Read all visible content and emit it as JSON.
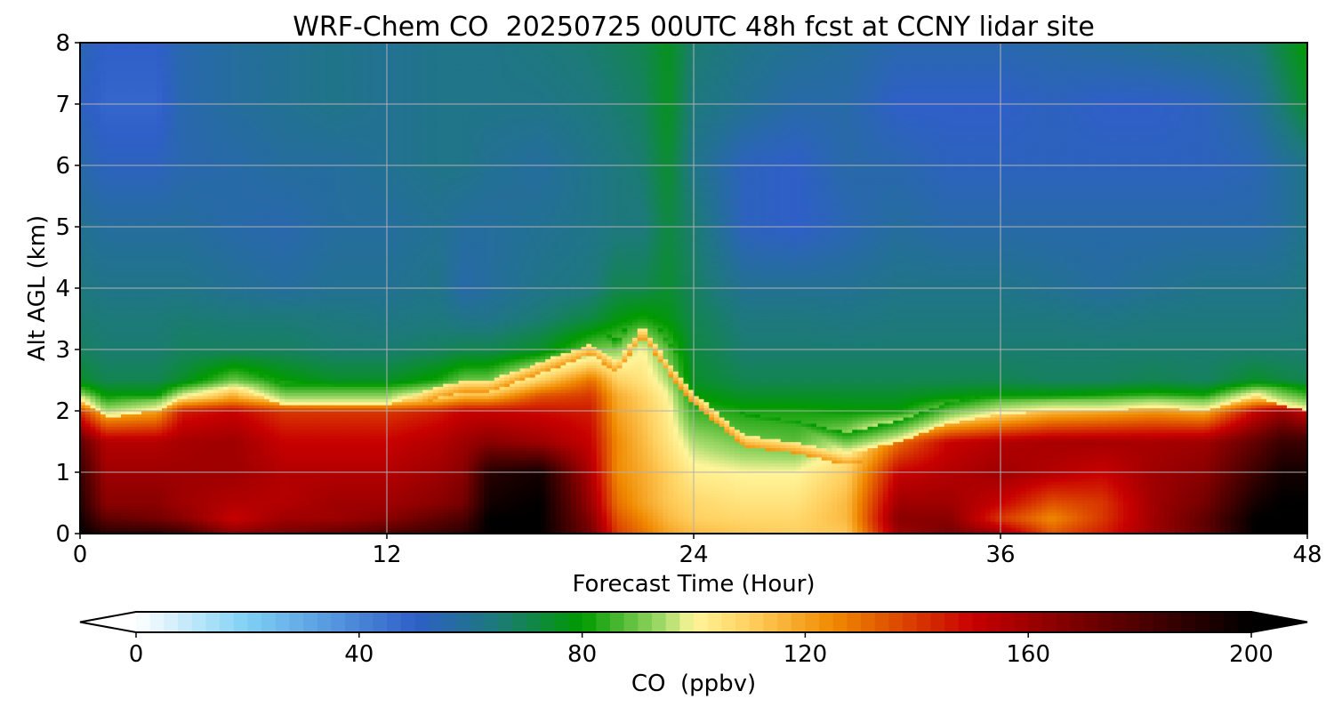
{
  "chart_data": {
    "type": "heatmap",
    "title": "WRF-Chem CO  20250725 00UTC 48h fcst at CCNY lidar site",
    "xlabel": "Forecast Time (Hour)",
    "ylabel": "Alt AGL (km)",
    "xlim": [
      0,
      48
    ],
    "ylim": [
      0,
      8
    ],
    "x_ticks": [
      "0",
      "12",
      "24",
      "36",
      "48"
    ],
    "y_ticks": [
      "0",
      "1",
      "2",
      "3",
      "4",
      "5",
      "6",
      "7",
      "8"
    ],
    "grid": true,
    "colorbar": {
      "label": "CO  (ppbv)",
      "range": [
        0,
        200
      ],
      "ticks": [
        "0",
        "40",
        "80",
        "120",
        "160",
        "200"
      ],
      "extend": "both",
      "colors": [
        {
          "value": 0,
          "color": "#ffffff"
        },
        {
          "value": 20,
          "color": "#7fd0f5"
        },
        {
          "value": 50,
          "color": "#2f5fc8"
        },
        {
          "value": 65,
          "color": "#1c7a78"
        },
        {
          "value": 80,
          "color": "#009a00"
        },
        {
          "value": 95,
          "color": "#a9dc6e"
        },
        {
          "value": 100,
          "color": "#fff59a"
        },
        {
          "value": 110,
          "color": "#ffd060"
        },
        {
          "value": 125,
          "color": "#f08a00"
        },
        {
          "value": 150,
          "color": "#c80000"
        },
        {
          "value": 175,
          "color": "#600000"
        },
        {
          "value": 200,
          "color": "#000000"
        }
      ]
    },
    "x": [
      0,
      1,
      3,
      4,
      6,
      8,
      10,
      12,
      14,
      15,
      16,
      18,
      20,
      21,
      22,
      23,
      24,
      26,
      28,
      30,
      32,
      34,
      36,
      38,
      40,
      42,
      44,
      46,
      47,
      48
    ],
    "y": [
      0,
      0.25,
      0.5,
      1,
      1.5,
      2,
      2.25,
      2.5,
      3,
      3.5,
      4,
      5,
      6,
      7,
      8
    ],
    "pbl_top_km": [
      2.2,
      1.9,
      2.0,
      2.2,
      2.4,
      2.1,
      2.1,
      2.1,
      2.4,
      2.5,
      2.5,
      2.8,
      3.1,
      2.8,
      3.4,
      2.8,
      2.3,
      1.6,
      1.5,
      1.3,
      1.5,
      1.8,
      1.95,
      2.0,
      2.0,
      2.05,
      2.0,
      2.25,
      2.1,
      2.0
    ],
    "values": [
      [
        200,
        190,
        190,
        185,
        165,
        170,
        175,
        180,
        185,
        190,
        200,
        200,
        170,
        140,
        130,
        120,
        115,
        112,
        110,
        112,
        160,
        170,
        160,
        135,
        145,
        160,
        175,
        200,
        200,
        200
      ],
      [
        195,
        175,
        170,
        165,
        150,
        160,
        160,
        165,
        175,
        180,
        200,
        200,
        165,
        135,
        125,
        115,
        110,
        108,
        108,
        115,
        165,
        165,
        140,
        125,
        140,
        160,
        175,
        200,
        200,
        200
      ],
      [
        190,
        165,
        165,
        160,
        155,
        155,
        160,
        160,
        165,
        170,
        195,
        200,
        160,
        130,
        120,
        112,
        108,
        105,
        105,
        115,
        160,
        160,
        150,
        135,
        140,
        160,
        170,
        195,
        200,
        200
      ],
      [
        185,
        160,
        160,
        160,
        160,
        155,
        155,
        155,
        160,
        165,
        190,
        195,
        155,
        125,
        118,
        110,
        102,
        100,
        100,
        110,
        150,
        155,
        160,
        155,
        150,
        160,
        165,
        185,
        195,
        195
      ],
      [
        175,
        155,
        155,
        158,
        160,
        150,
        150,
        150,
        155,
        160,
        165,
        160,
        150,
        125,
        115,
        105,
        95,
        90,
        88,
        98,
        130,
        150,
        155,
        158,
        158,
        158,
        160,
        175,
        185,
        185
      ],
      [
        140,
        115,
        120,
        145,
        150,
        140,
        140,
        140,
        145,
        150,
        150,
        148,
        145,
        120,
        112,
        102,
        85,
        82,
        82,
        80,
        80,
        95,
        105,
        115,
        118,
        122,
        118,
        150,
        160,
        150
      ],
      [
        95,
        80,
        80,
        100,
        115,
        100,
        95,
        95,
        105,
        115,
        115,
        135,
        140,
        118,
        110,
        100,
        80,
        75,
        75,
        75,
        75,
        78,
        80,
        80,
        82,
        85,
        82,
        105,
        100,
        90
      ],
      [
        75,
        70,
        70,
        75,
        90,
        80,
        75,
        75,
        82,
        90,
        90,
        110,
        130,
        110,
        105,
        95,
        75,
        70,
        70,
        70,
        70,
        70,
        70,
        68,
        68,
        70,
        68,
        75,
        72,
        70
      ],
      [
        68,
        66,
        66,
        68,
        68,
        68,
        66,
        66,
        68,
        70,
        70,
        75,
        90,
        92,
        100,
        88,
        72,
        66,
        66,
        66,
        66,
        66,
        66,
        66,
        66,
        66,
        66,
        66,
        66,
        66
      ],
      [
        66,
        65,
        65,
        66,
        65,
        65,
        64,
        63,
        64,
        62,
        62,
        66,
        72,
        78,
        82,
        78,
        70,
        64,
        64,
        63,
        64,
        64,
        64,
        64,
        63,
        64,
        64,
        64,
        64,
        65
      ],
      [
        64,
        62,
        62,
        62,
        60,
        58,
        60,
        60,
        62,
        56,
        58,
        62,
        64,
        70,
        70,
        74,
        68,
        60,
        60,
        60,
        62,
        62,
        62,
        60,
        58,
        60,
        62,
        62,
        62,
        64
      ],
      [
        60,
        58,
        58,
        58,
        56,
        55,
        58,
        58,
        60,
        58,
        58,
        60,
        62,
        64,
        64,
        72,
        66,
        52,
        50,
        54,
        58,
        56,
        56,
        56,
        56,
        56,
        56,
        56,
        58,
        62
      ],
      [
        56,
        52,
        52,
        55,
        56,
        58,
        58,
        60,
        62,
        62,
        60,
        58,
        62,
        64,
        66,
        74,
        62,
        52,
        50,
        56,
        55,
        52,
        52,
        52,
        52,
        52,
        52,
        54,
        58,
        62
      ],
      [
        52,
        48,
        48,
        55,
        58,
        60,
        62,
        60,
        62,
        62,
        62,
        62,
        64,
        66,
        68,
        76,
        64,
        60,
        56,
        56,
        50,
        50,
        50,
        52,
        50,
        50,
        52,
        58,
        66,
        74
      ],
      [
        54,
        50,
        50,
        55,
        58,
        60,
        62,
        60,
        62,
        62,
        62,
        64,
        66,
        68,
        70,
        76,
        66,
        62,
        60,
        58,
        55,
        55,
        55,
        56,
        58,
        60,
        62,
        64,
        72,
        80
      ]
    ]
  }
}
